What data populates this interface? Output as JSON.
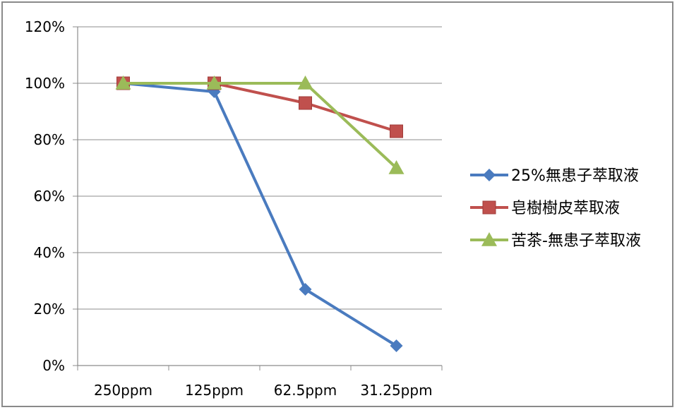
{
  "chart_data": {
    "type": "line",
    "title": "",
    "xlabel": "",
    "ylabel": "",
    "categories": [
      "250ppm",
      "125ppm",
      "62.5ppm",
      "31.25ppm"
    ],
    "ylim": [
      0,
      120
    ],
    "yticks": [
      "0%",
      "20%",
      "40%",
      "60%",
      "80%",
      "100%",
      "120%"
    ],
    "grid": true,
    "legend": "right",
    "series": [
      {
        "name": "25%無患子萃取液",
        "values": [
          100,
          97,
          27,
          7
        ],
        "color": "#4a7bbf",
        "marker": "diamond"
      },
      {
        "name": "皂樹樹皮萃取液",
        "values": [
          100,
          100,
          93,
          83
        ],
        "color": "#c0504d",
        "marker": "square"
      },
      {
        "name": "苦茶-無患子萃取液",
        "values": [
          100,
          100,
          100,
          70
        ],
        "color": "#9bbb59",
        "marker": "triangle"
      }
    ]
  }
}
